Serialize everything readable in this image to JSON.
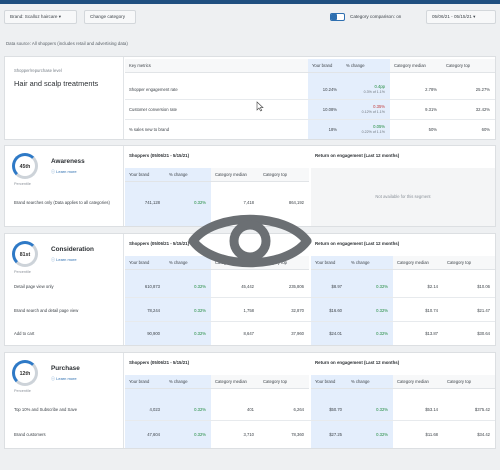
{
  "header": {
    "brand_filter": "Brand: Scalloz haircare",
    "change_category": "Change category",
    "category_comparison_label": "Category comparison: on",
    "date_range": "05/06/21 - 05/15/21"
  },
  "data_source": "Data source: All shoppers (includes retail and advertising data)",
  "overview": {
    "category_label": "Shopper/repurchase level",
    "category_title": "Hair and scalp treatments",
    "key_metrics_header": "Key metrics",
    "columns": [
      "Your brand",
      "% change",
      "Category median",
      "Category top"
    ],
    "rows": [
      {
        "label": "Shopper engagement rate",
        "brand": "10.24%",
        "change": "0.4pp",
        "change_sub": "0.3% of 1.1%",
        "median": "2.78%",
        "top": "25.27%"
      },
      {
        "label": "Customer conversion rate",
        "brand": "10.08%",
        "change": "0.35%",
        "change_sub": "0.12% of 1.1%",
        "median": "9.31%",
        "top": "32.42%"
      },
      {
        "label": "% sales new to brand",
        "brand": "18%",
        "change": "0.05%",
        "change_sub": "0.22% of 1.1%",
        "median": "50%",
        "top": "60%"
      }
    ]
  },
  "stages": {
    "awareness": {
      "rank": "45th",
      "percentile": "Percentile",
      "title": "Awareness",
      "learn": "Learn more",
      "shoppers_header": "Shoppers (05/06/21 - 5/15/21)",
      "roe_header": "Return on engagement (Last 12 months)",
      "columns": [
        "Your brand",
        "% change",
        "Category median",
        "Category top"
      ],
      "rows": [
        {
          "label": "Brand searches only (Data applies to all categories)",
          "brand": "741,128",
          "change": "0.32%",
          "median": "7,418",
          "top": "864,192"
        }
      ],
      "roe_na": "Not available for this segment"
    },
    "consideration": {
      "rank": "81st",
      "percentile": "Percentile",
      "title": "Consideration",
      "learn": "Learn more",
      "shoppers_header": "Shoppers (05/06/21 - 5/15/21)",
      "roe_header": "Return on engagement (Last 12 months)",
      "columns": [
        "Your brand",
        "% change",
        "Category median",
        "Category top",
        "Your brand",
        "% change",
        "Category median",
        "Category top"
      ],
      "rows": [
        {
          "label": "Detail page view only",
          "brand": "610,873",
          "change": "0.32%",
          "median": "45,442",
          "top": "235,806",
          "r_brand": "$8.97",
          "r_change": "0.32%",
          "r_median": "$2.14",
          "r_top": "$10.06"
        },
        {
          "label": "Brand search and detail page view",
          "brand": "78,244",
          "change": "0.32%",
          "median": "1,758",
          "top": "32,870",
          "r_brand": "$16.60",
          "r_change": "0.32%",
          "r_median": "$10.74",
          "r_top": "$21.47"
        },
        {
          "label": "Add to cart",
          "brand": "90,900",
          "change": "0.32%",
          "median": "8,647",
          "top": "37,960",
          "r_brand": "$24.01",
          "r_change": "0.32%",
          "r_median": "$13.87",
          "r_top": "$30.64"
        }
      ]
    },
    "purchase": {
      "rank": "12th",
      "percentile": "Percentile",
      "title": "Purchase",
      "learn": "Learn more",
      "shoppers_header": "Shoppers (05/06/21 - 5/15/21)",
      "roe_header": "Return on engagement (Last 12 months)",
      "columns": [
        "Your brand",
        "% change",
        "Category median",
        "Category top",
        "Your brand",
        "% change",
        "Category median",
        "Category top"
      ],
      "rows": [
        {
          "label": "Top 10% and Subscribe and Save",
          "brand": "4,023",
          "change": "0.32%",
          "median": "401",
          "top": "6,264",
          "r_brand": "$50.70",
          "r_change": "0.32%",
          "r_median": "$53.14",
          "r_top": "$375.42"
        },
        {
          "label": "Brand customers",
          "brand": "47,604",
          "change": "0.32%",
          "median": "3,710",
          "top": "78,360",
          "r_brand": "$27.25",
          "r_change": "0.32%",
          "r_median": "$11.68",
          "r_top": "$34.42"
        }
      ]
    }
  },
  "icons": {
    "overlay": "eye-icon",
    "cursor": "mouse-pointer-icon",
    "toggle": "toggle-switch"
  },
  "colors": {
    "brand_column": "#e4eefc",
    "accent": "#2e79c6",
    "positive": "#1f8a3d",
    "negative": "#c23a3a"
  }
}
